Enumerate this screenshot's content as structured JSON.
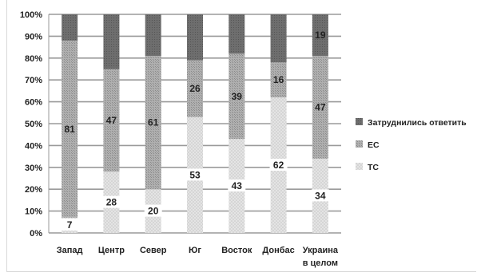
{
  "chart_data": {
    "type": "bar",
    "stacked": "percent",
    "categories": [
      "Запад",
      "Центр",
      "Север",
      "Юг",
      "Восток",
      "Донбас",
      "Украина в целом"
    ],
    "category_lines": [
      [
        "Запад"
      ],
      [
        "Центр"
      ],
      [
        "Север"
      ],
      [
        "Юг"
      ],
      [
        "Восток"
      ],
      [
        "Донбас"
      ],
      [
        "Украина",
        "в целом"
      ]
    ],
    "series": [
      {
        "name": "ТС",
        "values": [
          7,
          28,
          20,
          53,
          43,
          62,
          34
        ],
        "color": "#dcdcdc"
      },
      {
        "name": "ЕС",
        "values": [
          81,
          47,
          61,
          26,
          39,
          16,
          47
        ],
        "color": "#a6a6a6"
      },
      {
        "name": "Затруднились ответить",
        "values": [
          12,
          25,
          19,
          21,
          18,
          22,
          19
        ],
        "color": "#6b6b6b"
      }
    ],
    "data_labels": [
      {
        "category": 0,
        "series": "ТС",
        "text": "7"
      },
      {
        "category": 0,
        "series": "ЕС",
        "text": "81"
      },
      {
        "category": 1,
        "series": "ТС",
        "text": "28"
      },
      {
        "category": 1,
        "series": "ЕС",
        "text": "47"
      },
      {
        "category": 2,
        "series": "ТС",
        "text": "20"
      },
      {
        "category": 2,
        "series": "ЕС",
        "text": "61"
      },
      {
        "category": 3,
        "series": "ТС",
        "text": "53"
      },
      {
        "category": 3,
        "series": "ЕС",
        "text": "26"
      },
      {
        "category": 4,
        "series": "ТС",
        "text": "43"
      },
      {
        "category": 4,
        "series": "ЕС",
        "text": "39"
      },
      {
        "category": 5,
        "series": "ТС",
        "text": "62"
      },
      {
        "category": 5,
        "series": "ЕС",
        "text": "16"
      },
      {
        "category": 6,
        "series": "ТС",
        "text": "34"
      },
      {
        "category": 6,
        "series": "ЕС",
        "text": "47"
      },
      {
        "category": 6,
        "series": "Затруднились ответить",
        "text": "19"
      }
    ],
    "y_ticks": [
      "0%",
      "10%",
      "20%",
      "30%",
      "40%",
      "50%",
      "60%",
      "70%",
      "80%",
      "90%",
      "100%"
    ],
    "ylim": [
      0,
      100
    ],
    "grid": true,
    "legend_entries": [
      "Затруднились ответить",
      "ЕС",
      "ТС"
    ],
    "legend_position": "right"
  }
}
